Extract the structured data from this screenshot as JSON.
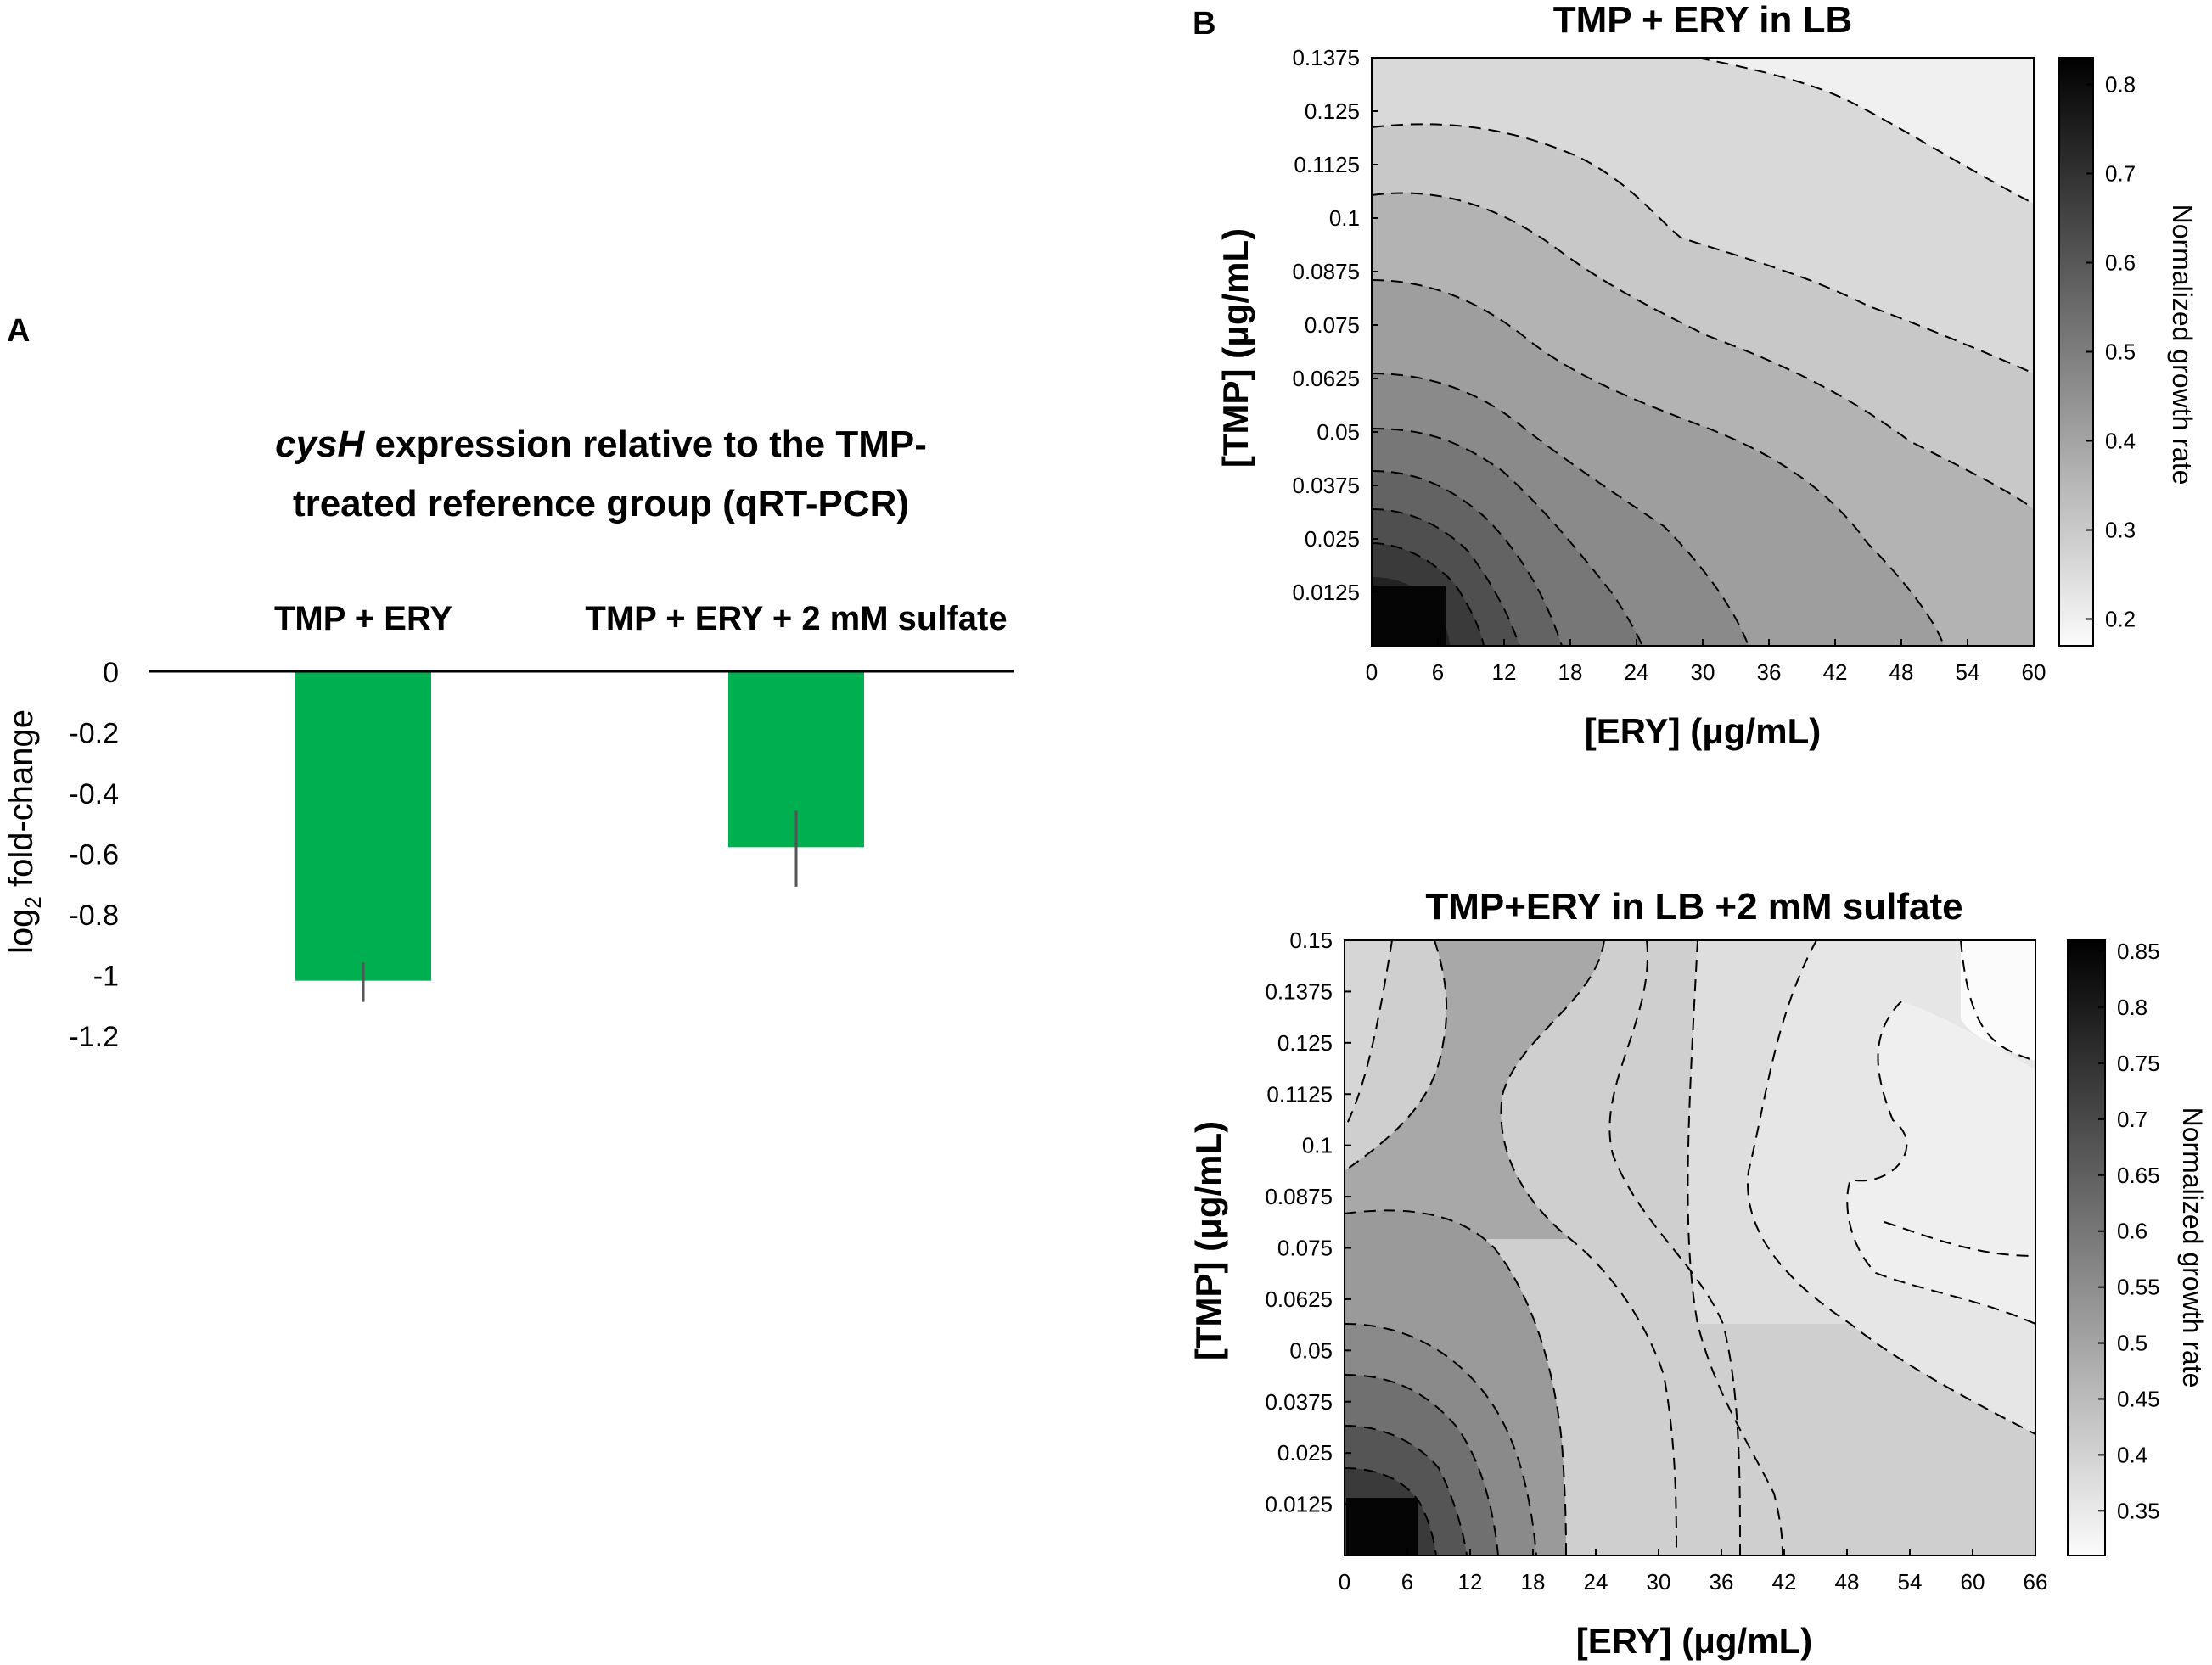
{
  "panel_a": {
    "label": "A"
  },
  "panel_b": {
    "label": "B"
  },
  "chart_data": [
    {
      "type": "bar",
      "title_italic": "cysH",
      "title_line1_rest": " expression relative to the TMP-",
      "title_line2": "treated reference group (qRT-PCR)",
      "ylabel_main": "log",
      "ylabel_sub": "2",
      "ylabel_rest": " fold-change",
      "categories": [
        "TMP + ERY",
        "TMP + ERY + 2 mM sulfate"
      ],
      "values": [
        -1.02,
        -0.58
      ],
      "error_low": [
        -1.09,
        -0.71
      ],
      "error_high": [
        -0.96,
        -0.46
      ],
      "ylim": [
        -1.2,
        0
      ],
      "yticks": [
        "0",
        "-0.2",
        "-0.4",
        "-0.6",
        "-0.8",
        "-1",
        "-1.2"
      ],
      "bar_color": "#00b050"
    },
    {
      "type": "heatmap",
      "title": "TMP + ERY in LB",
      "xlabel": "[ERY] (μg/mL)",
      "ylabel": "[TMP] (μg/mL)",
      "colorbar_label": "Normalized growth rate",
      "xticks": [
        "0",
        "6",
        "12",
        "18",
        "24",
        "30",
        "36",
        "42",
        "48",
        "54",
        "60"
      ],
      "yticks": [
        "0.0125",
        "0.025",
        "0.0375",
        "0.05",
        "0.0625",
        "0.075",
        "0.0875",
        "0.1",
        "0.1125",
        "0.125",
        "0.1375"
      ],
      "xlim": [
        0,
        60
      ],
      "ylim": [
        0,
        0.1375
      ],
      "colorbar_ticks": [
        "0.2",
        "0.3",
        "0.4",
        "0.5",
        "0.6",
        "0.7",
        "0.8"
      ],
      "crange": [
        0.17,
        0.83
      ]
    },
    {
      "type": "heatmap",
      "title": "TMP+ERY in LB +2 mM sulfate",
      "xlabel": "[ERY] (μg/mL)",
      "ylabel": "[TMP] (μg/mL)",
      "colorbar_label": "Normalized growth rate",
      "xticks": [
        "0",
        "6",
        "12",
        "18",
        "24",
        "30",
        "36",
        "42",
        "48",
        "54",
        "60",
        "66"
      ],
      "yticks": [
        "0.0125",
        "0.025",
        "0.0375",
        "0.05",
        "0.0625",
        "0.075",
        "0.0875",
        "0.1",
        "0.1125",
        "0.125",
        "0.1375",
        "0.15"
      ],
      "xlim": [
        0,
        66
      ],
      "ylim": [
        0,
        0.15
      ],
      "colorbar_ticks": [
        "0.35",
        "0.4",
        "0.45",
        "0.5",
        "0.55",
        "0.6",
        "0.65",
        "0.7",
        "0.75",
        "0.8",
        "0.85"
      ],
      "crange": [
        0.31,
        0.86
      ]
    }
  ]
}
